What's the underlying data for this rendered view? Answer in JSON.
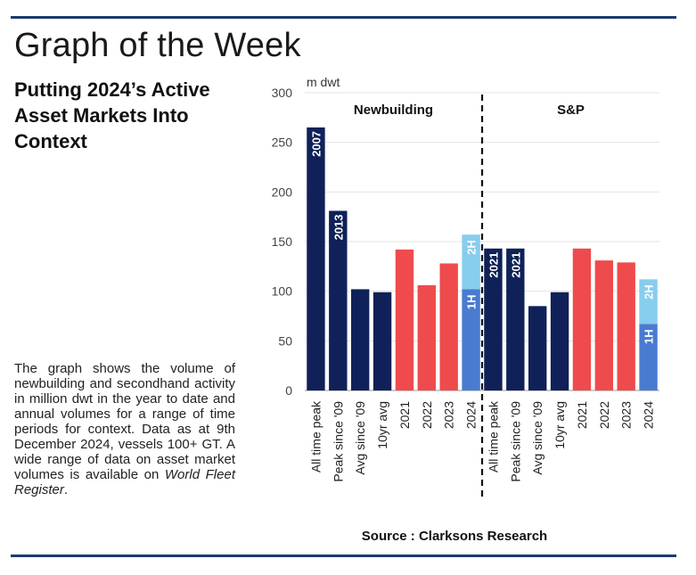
{
  "header": {
    "title": "Graph of the Week",
    "subtitle": "Putting 2024’s Active Asset Markets Into Context"
  },
  "description": {
    "text": "The graph shows the volume of newbuilding and secondhand activity in million dwt in the year to date and annual volumes for a range of time periods for context. Data as at 9th December 2024, vessels 100+ GT. A wide range of data on asset market volumes is available on ",
    "italic": "World Fleet Register",
    "end": "."
  },
  "source": "Source : Clarksons Research",
  "colors": {
    "navy": "#0f2158",
    "red": "#ef4b4c",
    "blue": "#4a7bd1",
    "lightblue": "#87cdee",
    "rule": "#1e3a6e"
  },
  "chart_data": {
    "type": "bar",
    "ylabel": "m dwt",
    "ylim": [
      0,
      300
    ],
    "yticks": [
      0,
      50,
      100,
      150,
      200,
      250,
      300
    ],
    "grid": true,
    "panels": [
      {
        "name": "Newbuilding",
        "categories": [
          "All time peak",
          "Peak since '09",
          "Avg since '09",
          "10yr avg",
          "2021",
          "2022",
          "2023",
          "2024"
        ],
        "bars": [
          {
            "value": 265,
            "color": "navy",
            "label": "2007"
          },
          {
            "value": 181,
            "color": "navy",
            "label": "2013"
          },
          {
            "value": 102,
            "color": "navy",
            "label": ""
          },
          {
            "value": 99,
            "color": "navy",
            "label": ""
          },
          {
            "value": 142,
            "color": "red",
            "label": ""
          },
          {
            "value": 106,
            "color": "red",
            "label": ""
          },
          {
            "value": 128,
            "color": "red",
            "label": ""
          },
          {
            "segments": [
              {
                "value": 102,
                "color": "blue",
                "label": "1H"
              },
              {
                "value": 55,
                "color": "lightblue",
                "label": "2H"
              }
            ]
          }
        ]
      },
      {
        "name": "S&P",
        "categories": [
          "All time peak",
          "Peak since '09",
          "Avg since '09",
          "10yr avg",
          "2021",
          "2022",
          "2023",
          "2024"
        ],
        "bars": [
          {
            "value": 143,
            "color": "navy",
            "label": "2021"
          },
          {
            "value": 143,
            "color": "navy",
            "label": "2021"
          },
          {
            "value": 85,
            "color": "navy",
            "label": ""
          },
          {
            "value": 99,
            "color": "navy",
            "label": ""
          },
          {
            "value": 143,
            "color": "red",
            "label": ""
          },
          {
            "value": 131,
            "color": "red",
            "label": ""
          },
          {
            "value": 129,
            "color": "red",
            "label": ""
          },
          {
            "segments": [
              {
                "value": 67,
                "color": "blue",
                "label": "1H"
              },
              {
                "value": 45,
                "color": "lightblue",
                "label": "2H"
              }
            ]
          }
        ]
      }
    ]
  }
}
